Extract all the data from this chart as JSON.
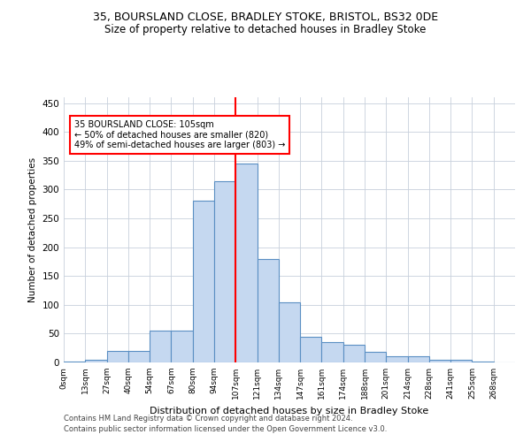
{
  "title_line1": "35, BOURSLAND CLOSE, BRADLEY STOKE, BRISTOL, BS32 0DE",
  "title_line2": "Size of property relative to detached houses in Bradley Stoke",
  "xlabel": "Distribution of detached houses by size in Bradley Stoke",
  "ylabel": "Number of detached properties",
  "footnote1": "Contains HM Land Registry data © Crown copyright and database right 2024.",
  "footnote2": "Contains public sector information licensed under the Open Government Licence v3.0.",
  "bin_labels": [
    "0sqm",
    "13sqm",
    "27sqm",
    "40sqm",
    "54sqm",
    "67sqm",
    "80sqm",
    "94sqm",
    "107sqm",
    "121sqm",
    "134sqm",
    "147sqm",
    "161sqm",
    "174sqm",
    "188sqm",
    "201sqm",
    "214sqm",
    "228sqm",
    "241sqm",
    "255sqm",
    "268sqm"
  ],
  "bar_heights": [
    2,
    5,
    20,
    20,
    55,
    55,
    280,
    315,
    345,
    180,
    105,
    45,
    35,
    30,
    18,
    10,
    10,
    5,
    5,
    2,
    0
  ],
  "bar_color": "#c5d8f0",
  "bar_edge_color": "#5a8fc3",
  "grid_color": "#c8d0dc",
  "vline_color": "red",
  "vline_x_label": "107sqm",
  "annotation_text": "35 BOURSLAND CLOSE: 105sqm\n← 50% of detached houses are smaller (820)\n49% of semi-detached houses are larger (803) →",
  "ylim": [
    0,
    460
  ],
  "yticks": [
    0,
    50,
    100,
    150,
    200,
    250,
    300,
    350,
    400,
    450
  ],
  "title_fontsize": 9,
  "subtitle_fontsize": 8.5,
  "footnote_fontsize": 6
}
